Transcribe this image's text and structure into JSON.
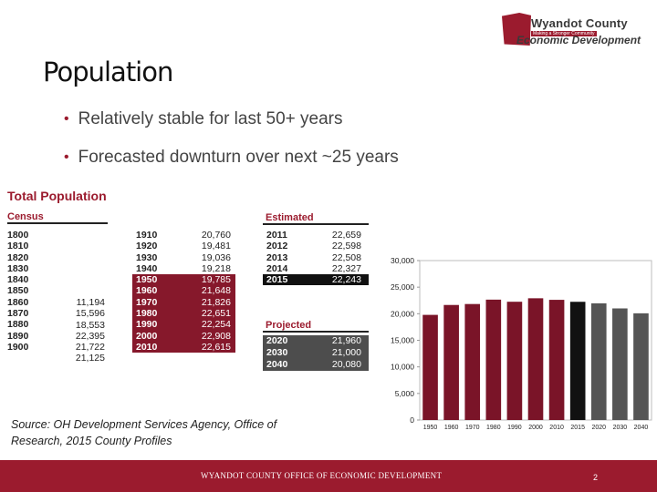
{
  "logo": {
    "name": "Wyandot County",
    "tagline": "Making a Stronger Community",
    "subtitle": "Economic Development"
  },
  "slide": {
    "title": "Population",
    "bullets": [
      "Relatively stable for last 50+ years",
      "Forecasted downturn over next ~25 years"
    ],
    "source": "Source: OH Development Services Agency, Office of Research, 2015 County Profiles"
  },
  "table": {
    "title": "Total Population",
    "census_header": "Census",
    "estimated_header": "Estimated",
    "projected_header": "Projected",
    "census_early_years": [
      "1800",
      "1810",
      "1820",
      "1830",
      "1840",
      "1850",
      "1860",
      "1870",
      "1880",
      "1890",
      "1900"
    ],
    "census_early_values": [
      "11,194",
      "15,596",
      "18,553",
      "22,395",
      "21,722",
      "21,125"
    ],
    "census_late": [
      {
        "year": "1910",
        "value": "20,760",
        "style": "plain"
      },
      {
        "year": "1920",
        "value": "19,481",
        "style": "plain"
      },
      {
        "year": "1930",
        "value": "19,036",
        "style": "plain"
      },
      {
        "year": "1940",
        "value": "19,218",
        "style": "plain"
      },
      {
        "year": "1950",
        "value": "19,785",
        "style": "red"
      },
      {
        "year": "1960",
        "value": "21,648",
        "style": "red"
      },
      {
        "year": "1970",
        "value": "21,826",
        "style": "red"
      },
      {
        "year": "1980",
        "value": "22,651",
        "style": "red"
      },
      {
        "year": "1990",
        "value": "22,254",
        "style": "red"
      },
      {
        "year": "2000",
        "value": "22,908",
        "style": "red"
      },
      {
        "year": "2010",
        "value": "22,615",
        "style": "red"
      }
    ],
    "estimated": [
      {
        "year": "2011",
        "value": "22,659",
        "style": "plain"
      },
      {
        "year": "2012",
        "value": "22,598",
        "style": "plain"
      },
      {
        "year": "2013",
        "value": "22,508",
        "style": "plain"
      },
      {
        "year": "2014",
        "value": "22,327",
        "style": "plain"
      },
      {
        "year": "2015",
        "value": "22,243",
        "style": "black"
      }
    ],
    "projected": [
      {
        "year": "2020",
        "value": "21,960",
        "style": "gray"
      },
      {
        "year": "2030",
        "value": "21,000",
        "style": "gray"
      },
      {
        "year": "2040",
        "value": "20,080",
        "style": "gray"
      }
    ]
  },
  "chart_data": {
    "type": "bar",
    "categories": [
      "1950",
      "1960",
      "1970",
      "1980",
      "1990",
      "2000",
      "2010",
      "2015",
      "2020",
      "2030",
      "2040"
    ],
    "values": [
      19785,
      21648,
      21826,
      22651,
      22254,
      22908,
      22615,
      22243,
      21960,
      21000,
      20080
    ],
    "colors": [
      "#7a1428",
      "#7a1428",
      "#7a1428",
      "#7a1428",
      "#7a1428",
      "#7a1428",
      "#7a1428",
      "#111111",
      "#555555",
      "#555555",
      "#555555"
    ],
    "ylim": [
      0,
      30000
    ],
    "y_ticks": [
      "30,000",
      "25,000",
      "20,000",
      "15,000",
      "10,000",
      "5,000",
      "0"
    ],
    "title": "",
    "xlabel": "",
    "ylabel": "",
    "grid": false
  },
  "footer": {
    "text": "WYANDOT COUNTY OFFICE OF ECONOMIC DEVELOPMENT",
    "page": "2"
  }
}
